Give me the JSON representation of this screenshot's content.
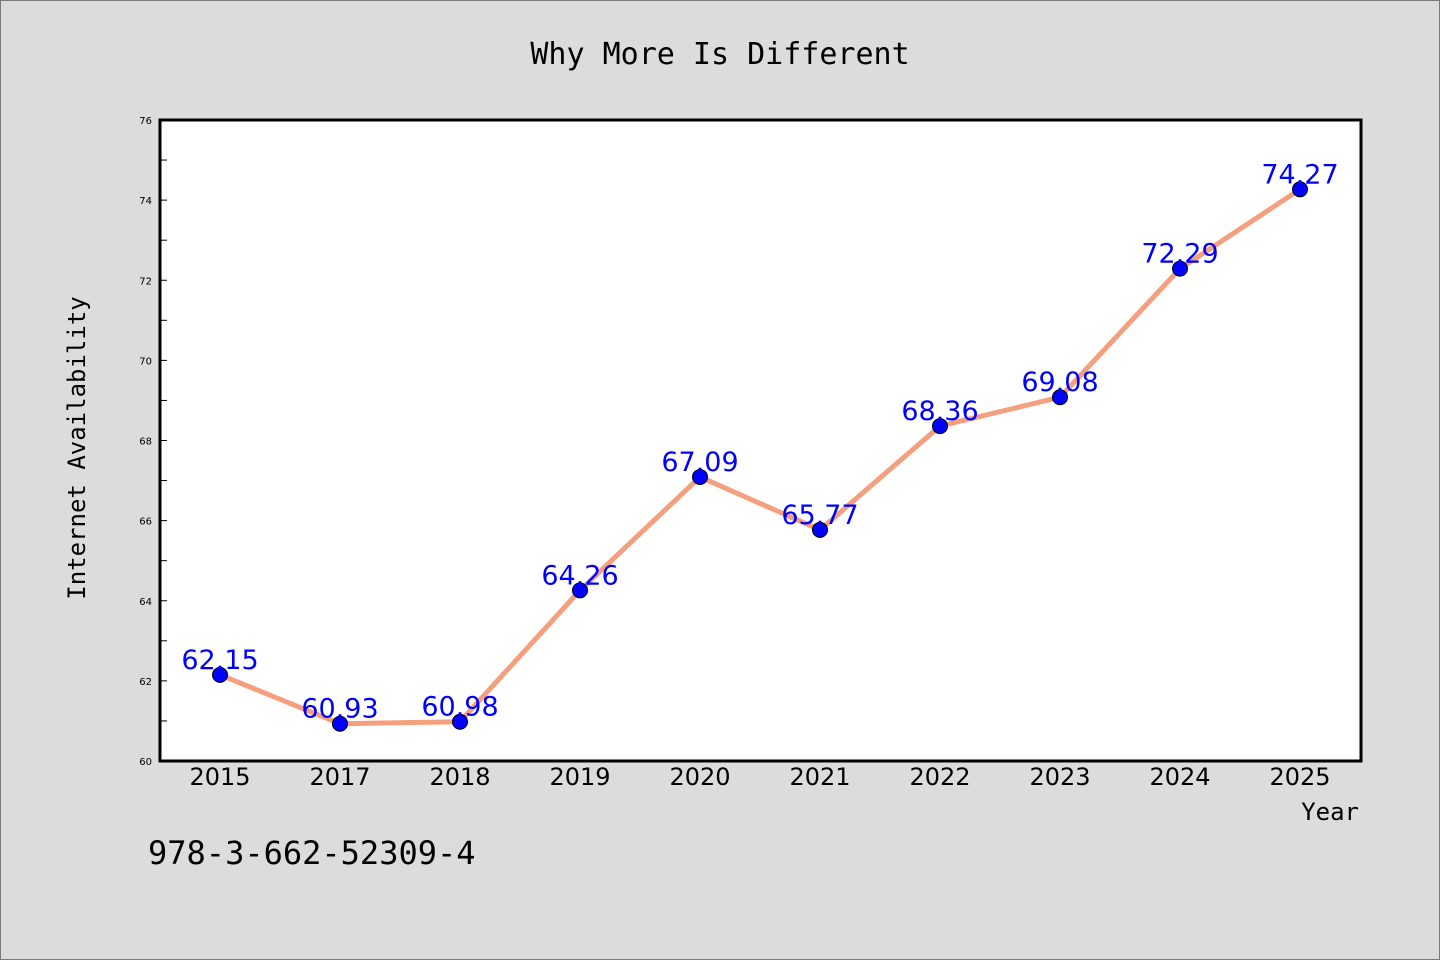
{
  "chart_data": {
    "type": "line",
    "title": "Why More Is Different",
    "xlabel": "Year",
    "ylabel": "Internet Availability",
    "categories": [
      "2015",
      "2017",
      "2018",
      "2019",
      "2020",
      "2021",
      "2022",
      "2023",
      "2024",
      "2025"
    ],
    "series": [
      {
        "values": [
          62.15,
          60.93,
          60.98,
          64.26,
          67.09,
          65.77,
          68.36,
          69.08,
          72.29,
          74.27
        ],
        "data_labels": [
          "62.15",
          "60.93",
          "60.98",
          "64.26",
          "67.09",
          "65.77",
          "68.36",
          "69.08",
          "72.29",
          "74.27"
        ]
      }
    ],
    "ylim": [
      60,
      76
    ],
    "yticks": [
      "60",
      "62",
      "64",
      "66",
      "68",
      "70",
      "72",
      "74",
      "76"
    ],
    "ytick_values": [
      60,
      62,
      64,
      66,
      68,
      70,
      72,
      74,
      76
    ],
    "grid": false,
    "legend": "none",
    "colors": {
      "line": "#f4a07e",
      "marker": "#0000ff",
      "data_label": "#0000ff",
      "background": "#dcdcdc",
      "plot_background": "#ffffff"
    }
  },
  "footer": {
    "isbn": "978-3-662-52309-4"
  }
}
